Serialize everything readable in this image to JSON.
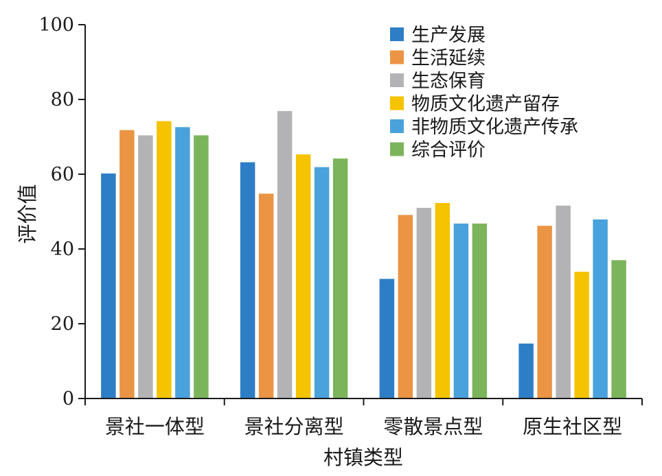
{
  "chart_data": {
    "type": "bar",
    "title": "",
    "xlabel": "村镇类型",
    "ylabel": "评价值",
    "ylim": [
      0,
      100
    ],
    "yticks": [
      0,
      20,
      40,
      60,
      80,
      100
    ],
    "grid": false,
    "legend_position": "top-right",
    "categories": [
      "景社一体型",
      "景社分离型",
      "零散景点型",
      "原生社区型"
    ],
    "series": [
      {
        "name": "生产发展",
        "color": "#2e7ec6",
        "values": [
          60.2,
          63.2,
          32.0,
          14.7
        ]
      },
      {
        "name": "生活延续",
        "color": "#ea9444",
        "values": [
          71.8,
          54.8,
          49.1,
          46.2
        ]
      },
      {
        "name": "生态保育",
        "color": "#b3b3b6",
        "values": [
          70.4,
          76.9,
          51.0,
          51.6
        ]
      },
      {
        "name": "物质文化遗产留存",
        "color": "#f6c300",
        "values": [
          74.2,
          65.3,
          52.3,
          33.9
        ]
      },
      {
        "name": "非物质文化遗产传承",
        "color": "#4aa2dc",
        "values": [
          72.6,
          61.9,
          46.8,
          47.9
        ]
      },
      {
        "name": "综合评价",
        "color": "#7cb45c",
        "values": [
          70.4,
          64.2,
          46.8,
          37.0
        ]
      }
    ]
  }
}
